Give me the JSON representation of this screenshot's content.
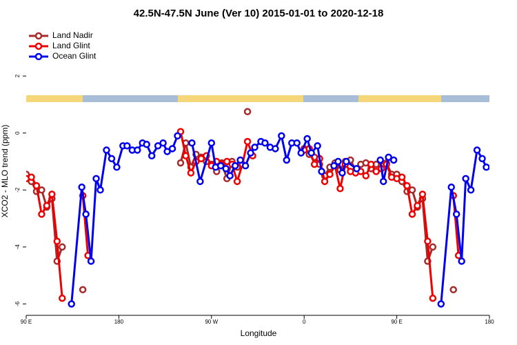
{
  "chart_data": {
    "type": "line",
    "title": "42.5N-47.5N June (Ver 10)   2015-01-01 to 2020-12-18",
    "xlabel": "Longitude",
    "ylabel": "XCO2 - MLO trend (ppm)",
    "xlim": [
      90,
      540
    ],
    "ylim": [
      -6.4,
      3.7
    ],
    "xticks": [
      {
        "value": 90,
        "label": "90 E"
      },
      180,
      {
        "value": 270,
        "label": "90 W"
      },
      {
        "value": 360,
        "label": "0"
      },
      {
        "value": 450,
        "label": "90 E"
      },
      {
        "value": 540,
        "label": "180"
      }
    ],
    "yticks": [
      -6,
      -4,
      -2,
      0,
      2
    ],
    "legend": "upper left",
    "series": [
      {
        "name": "Land Nadir",
        "color": "#a52a2a",
        "x": [
          90,
          95,
          100,
          105,
          110,
          115,
          120,
          125,
          130,
          145,
          150,
          240,
          245,
          250,
          255,
          260,
          265,
          270,
          275,
          280,
          285,
          290,
          295,
          300,
          302,
          305,
          308,
          360,
          365,
          370,
          375,
          380,
          385,
          390,
          395,
          400,
          405,
          410,
          415,
          420,
          425,
          430,
          435,
          440,
          445,
          450,
          455,
          460,
          465,
          470,
          475,
          480,
          485,
          490,
          505
        ],
        "values": [
          -1.45,
          -1.7,
          -2.05,
          -2.0,
          -2.6,
          -2.3,
          -4.5,
          -4.0,
          null,
          -5.5,
          null,
          -1.05,
          -0.35,
          -1.2,
          -0.75,
          -0.85,
          -1.0,
          -1.1,
          -1.35,
          -1.05,
          -1.6,
          -1.0,
          -1.2,
          -1.1,
          null,
          0.75,
          null,
          -0.55,
          -0.75,
          -0.85,
          -1.1,
          -1.5,
          -1.2,
          -1.05,
          -1.3,
          -1.0,
          -0.95,
          -1.3,
          -1.1,
          -1.05,
          -1.25,
          -1.1,
          -1.15,
          -1.05,
          -1.45,
          -1.45,
          -1.7,
          -2.05,
          -2.0,
          -2.6,
          -2.3,
          -4.5,
          -4.0,
          null,
          -5.5
        ]
      },
      {
        "name": "Land Glint",
        "color": "#ee0000",
        "x": [
          90,
          95,
          100,
          105,
          110,
          115,
          120,
          125,
          130,
          145,
          150,
          155,
          240,
          245,
          250,
          255,
          260,
          265,
          270,
          275,
          280,
          285,
          290,
          295,
          300,
          305,
          310,
          315,
          360,
          365,
          370,
          375,
          380,
          385,
          390,
          395,
          400,
          405,
          410,
          415,
          420,
          425,
          430,
          435,
          440,
          445,
          450,
          455,
          460,
          465,
          470,
          475,
          480,
          485,
          490,
          505,
          510
        ],
        "values": [
          -1.6,
          -1.55,
          -1.85,
          -2.85,
          -2.55,
          -2.15,
          -3.8,
          -5.8,
          null,
          -2.2,
          -4.3,
          null,
          0.05,
          -0.8,
          -1.4,
          -1.0,
          -0.9,
          -0.8,
          -1.15,
          -1.0,
          -1.1,
          -1.0,
          -1.1,
          -1.7,
          -1.1,
          -0.3,
          -0.8,
          null,
          -0.6,
          -0.55,
          -1.1,
          -0.9,
          -1.7,
          -1.45,
          -1.15,
          -1.95,
          -1.1,
          -1.35,
          -1.4,
          -1.35,
          -1.5,
          -1.1,
          -1.35,
          -1.25,
          -1.1,
          -1.55,
          -1.6,
          -1.55,
          -1.85,
          -2.85,
          -2.55,
          -2.15,
          -3.8,
          -5.8,
          null,
          -2.2,
          -4.3
        ]
      },
      {
        "name": "Ocean Glint",
        "color": "#0000ee",
        "x": [
          134,
          144,
          148,
          153,
          158,
          162,
          168,
          173,
          178,
          184,
          188,
          193,
          198,
          203,
          207,
          212,
          218,
          223,
          227,
          232,
          237,
          245,
          251,
          259,
          270,
          274,
          279,
          284,
          288,
          293,
          298,
          303,
          308,
          312,
          318,
          322,
          327,
          332,
          338,
          343,
          348,
          353,
          357,
          363,
          367,
          373,
          377,
          383,
          389,
          393,
          397,
          401,
          411,
          425,
          434,
          437,
          442,
          447,
          470,
          493,
          503,
          508,
          513,
          517,
          522,
          528,
          533,
          537
        ],
        "values": [
          -6.0,
          -1.9,
          -2.85,
          -4.5,
          -1.6,
          -2.0,
          -0.6,
          -0.9,
          -1.2,
          -0.45,
          -0.45,
          -0.6,
          -0.6,
          -0.35,
          -0.4,
          -0.8,
          -0.45,
          -0.35,
          -0.65,
          -0.55,
          -0.1,
          null,
          -0.35,
          -1.7,
          -0.35,
          -1.2,
          -1.15,
          -1.25,
          -1.5,
          -1.15,
          -0.95,
          -1.15,
          -0.7,
          -0.5,
          -0.3,
          -0.35,
          -0.5,
          -0.55,
          -0.1,
          -0.95,
          -0.35,
          -0.35,
          -0.7,
          -0.2,
          -0.7,
          -0.45,
          -1.35,
          null,
          -1.15,
          -1.0,
          -1.4,
          -1.0,
          -1.25,
          null,
          -0.95,
          -1.7,
          -0.85,
          -0.95,
          null,
          -6.0,
          -1.9,
          -2.85,
          -4.5,
          -1.6,
          -2.0,
          -0.6,
          -0.9,
          -1.2
        ]
      }
    ]
  }
}
